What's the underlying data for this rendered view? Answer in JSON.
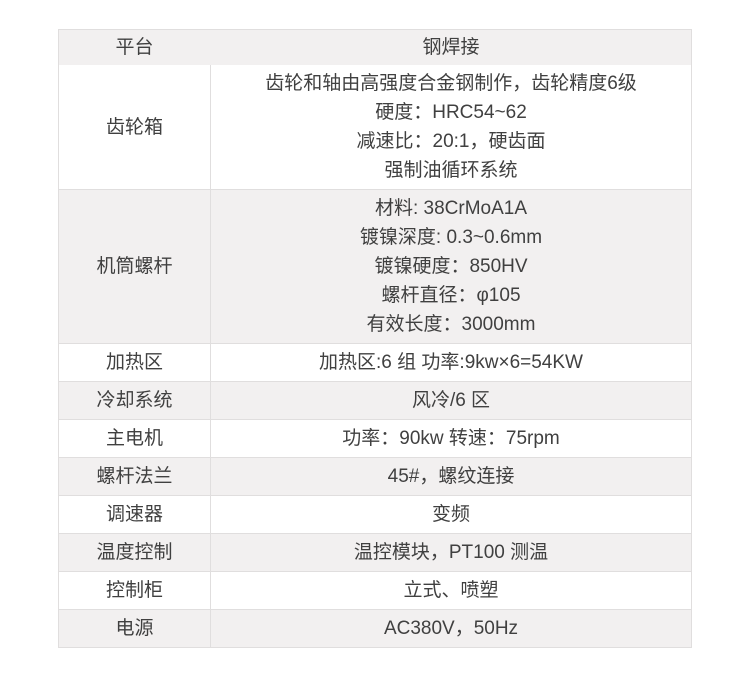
{
  "table": {
    "header": {
      "col1": "平台",
      "col2": "钢焊接"
    },
    "rows": [
      {
        "label": "齿轮箱",
        "lines": [
          "齿轮和轴由高强度合金钢制作，齿轮精度6级",
          "硬度：HRC54~62",
          "减速比：20:1，硬齿面",
          "强制油循环系统"
        ]
      },
      {
        "label": "机筒螺杆",
        "lines": [
          "材料: 38CrMoA1A",
          "镀镍深度: 0.3~0.6mm",
          "镀镍硬度：850HV",
          "螺杆直径：φ105",
          "有效长度：3000mm"
        ]
      },
      {
        "label": "加热区",
        "lines": [
          "加热区:6 组  功率:9kw×6=54KW"
        ]
      },
      {
        "label": "冷却系统",
        "lines": [
          "风冷/6 区"
        ]
      },
      {
        "label": "主电机",
        "lines": [
          "功率：90kw   转速：75rpm"
        ]
      },
      {
        "label": "螺杆法兰",
        "lines": [
          "45#，螺纹连接"
        ]
      },
      {
        "label": "调速器",
        "lines": [
          "变频"
        ]
      },
      {
        "label": "温度控制",
        "lines": [
          "温控模块，PT100 测温"
        ]
      },
      {
        "label": "控制柜",
        "lines": [
          "立式、喷塑"
        ]
      },
      {
        "label": "电源",
        "lines": [
          "AC380V，50Hz"
        ]
      }
    ],
    "colors": {
      "stripe_bg": "#f2f0f0",
      "white_bg": "#ffffff",
      "border": "#e0dede",
      "text": "#404040"
    }
  }
}
